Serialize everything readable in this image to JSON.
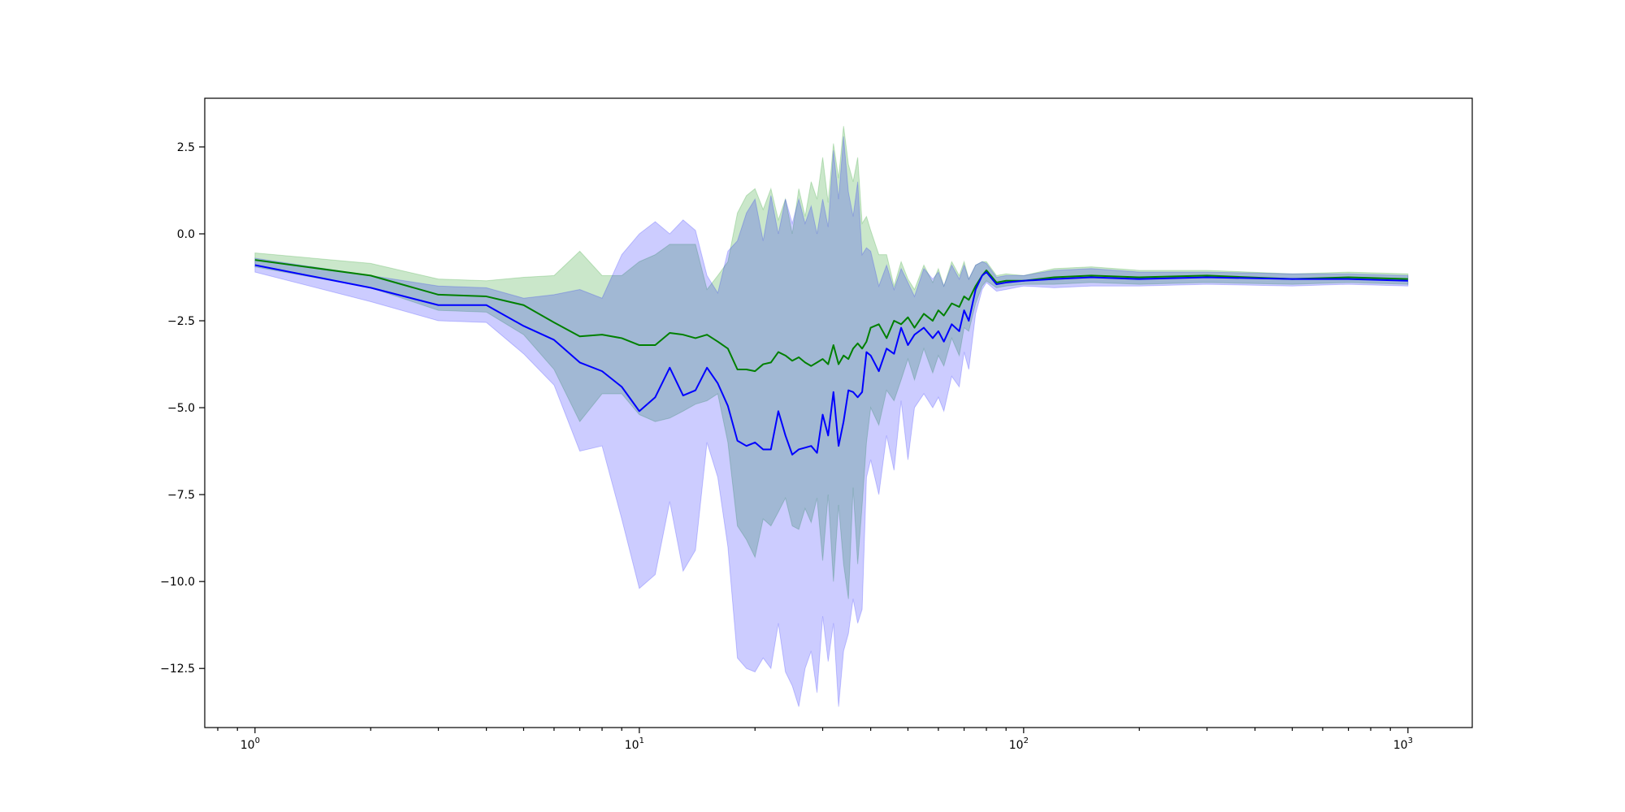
{
  "chart_data": {
    "type": "line",
    "title": "",
    "xlabel": "",
    "ylabel": "",
    "x_scale": "log",
    "xlim": [
      0.74,
      1470
    ],
    "ylim": [
      -14.2,
      3.9
    ],
    "grid": false,
    "legend": "none",
    "x_major_ticks": [
      1,
      10,
      100,
      1000
    ],
    "x_tick_labels": [
      {
        "base": "10",
        "exp": "0"
      },
      {
        "base": "10",
        "exp": "1"
      },
      {
        "base": "10",
        "exp": "2"
      },
      {
        "base": "10",
        "exp": "3"
      }
    ],
    "y_ticks": [
      2.5,
      0.0,
      -2.5,
      -5.0,
      -7.5,
      -10.0,
      -12.5
    ],
    "y_tick_labels": [
      "2.5",
      "0.0",
      "−2.5",
      "−5.0",
      "−7.5",
      "−10.0",
      "−12.5"
    ],
    "series": [
      {
        "color": "#008000",
        "band_color": "#2ca02c",
        "band_opacity": 0.25,
        "x": [
          1,
          2,
          3,
          4,
          5,
          6,
          7,
          8,
          9,
          10,
          11,
          12,
          13,
          14,
          15,
          16,
          17,
          18,
          19,
          20,
          21,
          22,
          23,
          24,
          25,
          26,
          27,
          28,
          29,
          30,
          31,
          32,
          33,
          34,
          35,
          36,
          37,
          38,
          39,
          40,
          42,
          44,
          46,
          48,
          50,
          52,
          55,
          58,
          60,
          62,
          65,
          68,
          70,
          72,
          75,
          78,
          80,
          85,
          90,
          100,
          120,
          150,
          200,
          300,
          500,
          700,
          1000
        ],
        "mean": [
          -0.75,
          -1.2,
          -1.75,
          -1.8,
          -2.05,
          -2.55,
          -2.95,
          -2.9,
          -3.0,
          -3.2,
          -3.2,
          -2.85,
          -2.9,
          -3.0,
          -2.9,
          -3.1,
          -3.3,
          -3.9,
          -3.9,
          -3.95,
          -3.75,
          -3.7,
          -3.4,
          -3.5,
          -3.65,
          -3.55,
          -3.7,
          -3.8,
          -3.7,
          -3.6,
          -3.75,
          -3.2,
          -3.75,
          -3.5,
          -3.6,
          -3.3,
          -3.15,
          -3.3,
          -3.1,
          -2.7,
          -2.6,
          -3.0,
          -2.5,
          -2.6,
          -2.4,
          -2.7,
          -2.3,
          -2.5,
          -2.2,
          -2.35,
          -2.0,
          -2.1,
          -1.8,
          -1.9,
          -1.5,
          -1.2,
          -1.05,
          -1.4,
          -1.35,
          -1.35,
          -1.25,
          -1.2,
          -1.25,
          -1.2,
          -1.3,
          -1.25,
          -1.3
        ],
        "upper": [
          -0.55,
          -0.85,
          -1.3,
          -1.35,
          -1.25,
          -1.2,
          -0.5,
          -1.2,
          -1.2,
          -0.8,
          -0.6,
          -0.3,
          -0.3,
          -0.3,
          -1.6,
          -1.2,
          -0.8,
          0.6,
          1.1,
          1.3,
          0.7,
          1.3,
          0.4,
          1.0,
          0.0,
          1.3,
          0.5,
          1.5,
          1.0,
          2.2,
          0.9,
          2.6,
          1.6,
          3.1,
          2.0,
          1.5,
          2.2,
          0.3,
          0.5,
          0.1,
          -0.6,
          -0.6,
          -1.5,
          -0.8,
          -1.3,
          -1.6,
          -0.9,
          -1.4,
          -1.0,
          -1.5,
          -0.8,
          -1.2,
          -0.8,
          -1.3,
          -0.9,
          -0.8,
          -0.8,
          -1.2,
          -1.15,
          -1.2,
          -1.0,
          -0.95,
          -1.05,
          -1.05,
          -1.15,
          -1.1,
          -1.15
        ],
        "lower": [
          -0.95,
          -1.55,
          -2.2,
          -2.25,
          -2.9,
          -3.9,
          -5.4,
          -4.6,
          -4.6,
          -5.2,
          -5.4,
          -5.3,
          -5.1,
          -4.9,
          -4.8,
          -4.6,
          -6.0,
          -8.4,
          -8.8,
          -9.3,
          -8.2,
          -8.4,
          -8.0,
          -7.6,
          -8.4,
          -8.5,
          -7.9,
          -8.3,
          -7.6,
          -9.4,
          -7.5,
          -10.0,
          -7.8,
          -9.5,
          -10.5,
          -7.3,
          -9.5,
          -7.8,
          -6.0,
          -5.0,
          -5.5,
          -4.5,
          -4.8,
          -4.2,
          -3.6,
          -4.2,
          -3.3,
          -4.0,
          -3.5,
          -3.8,
          -3.0,
          -3.5,
          -2.7,
          -2.8,
          -2.0,
          -1.5,
          -1.35,
          -1.55,
          -1.5,
          -1.45,
          -1.45,
          -1.4,
          -1.45,
          -1.4,
          -1.45,
          -1.4,
          -1.45
        ]
      },
      {
        "color": "#0000ff",
        "band_color": "#0000ff",
        "band_opacity": 0.2,
        "x": [
          1,
          2,
          3,
          4,
          5,
          6,
          7,
          8,
          9,
          10,
          11,
          12,
          13,
          14,
          15,
          16,
          17,
          18,
          19,
          20,
          21,
          22,
          23,
          24,
          25,
          26,
          27,
          28,
          29,
          30,
          31,
          32,
          33,
          34,
          35,
          36,
          37,
          38,
          39,
          40,
          42,
          44,
          46,
          48,
          50,
          52,
          55,
          58,
          60,
          62,
          65,
          68,
          70,
          72,
          75,
          78,
          80,
          85,
          90,
          100,
          120,
          150,
          200,
          300,
          500,
          700,
          1000
        ],
        "mean": [
          -0.9,
          -1.55,
          -2.05,
          -2.05,
          -2.65,
          -3.05,
          -3.7,
          -3.95,
          -4.4,
          -5.1,
          -4.7,
          -3.85,
          -4.65,
          -4.5,
          -3.85,
          -4.3,
          -4.95,
          -5.95,
          -6.1,
          -6.0,
          -6.2,
          -6.2,
          -5.1,
          -5.8,
          -6.35,
          -6.2,
          -6.15,
          -6.1,
          -6.3,
          -5.2,
          -5.8,
          -4.55,
          -6.1,
          -5.4,
          -4.5,
          -4.55,
          -4.7,
          -4.55,
          -3.4,
          -3.5,
          -3.95,
          -3.3,
          -3.45,
          -2.7,
          -3.2,
          -2.9,
          -2.7,
          -3.0,
          -2.8,
          -3.1,
          -2.6,
          -2.8,
          -2.2,
          -2.5,
          -1.6,
          -1.2,
          -1.1,
          -1.45,
          -1.4,
          -1.35,
          -1.3,
          -1.25,
          -1.3,
          -1.25,
          -1.3,
          -1.3,
          -1.35
        ],
        "upper": [
          -0.7,
          -1.2,
          -1.5,
          -1.55,
          -1.85,
          -1.75,
          -1.6,
          -1.85,
          -0.6,
          0.0,
          0.35,
          0.0,
          0.4,
          0.1,
          -1.2,
          -1.7,
          -0.5,
          -0.2,
          0.6,
          1.0,
          -0.2,
          1.1,
          0.0,
          1.0,
          0.3,
          1.0,
          0.3,
          0.8,
          0.0,
          1.0,
          0.2,
          2.4,
          1.0,
          2.8,
          1.2,
          0.5,
          1.5,
          -0.6,
          -0.4,
          -0.5,
          -1.5,
          -0.9,
          -1.6,
          -1.0,
          -1.4,
          -1.8,
          -1.0,
          -1.3,
          -1.1,
          -1.5,
          -0.9,
          -1.3,
          -0.9,
          -1.3,
          -0.9,
          -0.8,
          -0.85,
          -1.25,
          -1.2,
          -1.2,
          -1.05,
          -1.0,
          -1.1,
          -1.1,
          -1.15,
          -1.15,
          -1.2
        ],
        "lower": [
          -1.1,
          -1.95,
          -2.5,
          -2.55,
          -3.45,
          -4.35,
          -6.25,
          -6.1,
          -8.2,
          -10.2,
          -9.8,
          -7.7,
          -9.7,
          -9.1,
          -6.0,
          -7.0,
          -9.0,
          -12.2,
          -12.5,
          -12.6,
          -12.2,
          -12.5,
          -11.2,
          -12.6,
          -13.0,
          -13.6,
          -12.5,
          -12.0,
          -13.2,
          -11.0,
          -12.3,
          -11.2,
          -13.6,
          -12.0,
          -11.5,
          -10.5,
          -11.2,
          -10.8,
          -7.0,
          -6.5,
          -7.5,
          -5.8,
          -6.8,
          -4.8,
          -6.5,
          -5.0,
          -4.6,
          -5.0,
          -4.7,
          -5.1,
          -4.1,
          -4.4,
          -3.4,
          -3.9,
          -2.3,
          -1.6,
          -1.4,
          -1.65,
          -1.6,
          -1.5,
          -1.55,
          -1.5,
          -1.5,
          -1.45,
          -1.5,
          -1.45,
          -1.5
        ]
      }
    ]
  }
}
